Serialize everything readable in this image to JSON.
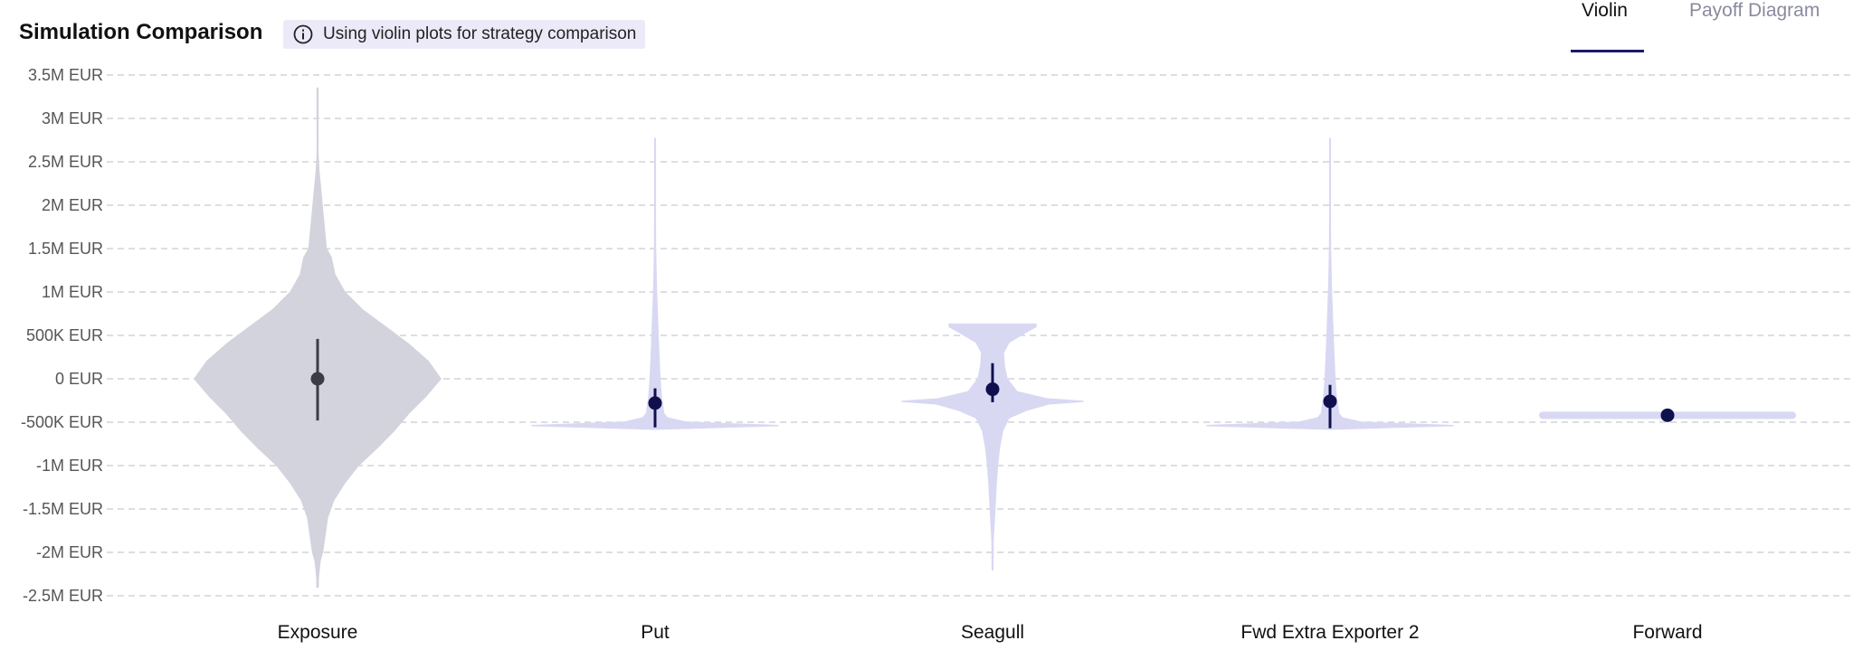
{
  "header": {
    "title": "Simulation Comparison",
    "note": "Using violin plots for strategy comparison",
    "note_icon": "info-circle-icon"
  },
  "tabs": [
    {
      "label": "Violin",
      "active": true
    },
    {
      "label": "Payoff Diagram",
      "active": false
    }
  ],
  "colors": {
    "exposure_fill": "#d3d3dd",
    "strategy_fill": "#d8d8f3",
    "exposure_marker": "#3c3c46",
    "strategy_marker": "#10104f",
    "grid": "#d4d4d8",
    "tab_accent": "#1a1a6e"
  },
  "chart_data": {
    "type": "violin",
    "unit": "EUR",
    "ylim": [
      -2500000,
      3500000
    ],
    "yticks": [
      3500000,
      3000000,
      2500000,
      2000000,
      1500000,
      1000000,
      500000,
      0,
      -500000,
      -1000000,
      -1500000,
      -2000000,
      -2500000
    ],
    "ytick_labels": [
      "3.5M EUR",
      "3M EUR",
      "2.5M EUR",
      "2M EUR",
      "1.5M EUR",
      "1M EUR",
      "500K EUR",
      "0 EUR",
      "-500K EUR",
      "-1M EUR",
      "-1.5M EUR",
      "-2M EUR",
      "-2.5M EUR"
    ],
    "grid": true,
    "categories": [
      "Exposure",
      "Put",
      "Seagull",
      "Fwd Extra Exporter 2",
      "Forward"
    ],
    "series": [
      {
        "category": "Exposure",
        "median": 0,
        "whisker": [
          -480000,
          460000
        ],
        "min": -2400000,
        "max": 3350000,
        "density": [
          [
            -2400000,
            0.005
          ],
          [
            -2300000,
            0.005
          ],
          [
            -2100000,
            0.02
          ],
          [
            -2000000,
            0.04
          ],
          [
            -1800000,
            0.06
          ],
          [
            -1600000,
            0.08
          ],
          [
            -1400000,
            0.13
          ],
          [
            -1200000,
            0.22
          ],
          [
            -1000000,
            0.33
          ],
          [
            -800000,
            0.48
          ],
          [
            -600000,
            0.62
          ],
          [
            -400000,
            0.74
          ],
          [
            -200000,
            0.88
          ],
          [
            0,
            1.0
          ],
          [
            200000,
            0.9
          ],
          [
            400000,
            0.74
          ],
          [
            600000,
            0.55
          ],
          [
            800000,
            0.36
          ],
          [
            1000000,
            0.22
          ],
          [
            1200000,
            0.14
          ],
          [
            1400000,
            0.11
          ],
          [
            1500000,
            0.07
          ],
          [
            1800000,
            0.05
          ],
          [
            2100000,
            0.03
          ],
          [
            2400000,
            0.01
          ],
          [
            2600000,
            0.002
          ],
          [
            3100000,
            0.003
          ],
          [
            3350000,
            0.003
          ]
        ]
      },
      {
        "category": "Put",
        "median": -280000,
        "whisker": [
          -560000,
          -110000
        ],
        "min": -580000,
        "max": 2770000,
        "density": [
          [
            -580000,
            0.0
          ],
          [
            -540000,
            1.0
          ],
          [
            -500000,
            0.25
          ],
          [
            -450000,
            0.1
          ],
          [
            -400000,
            0.07
          ],
          [
            -300000,
            0.06
          ],
          [
            -200000,
            0.05
          ],
          [
            0,
            0.04
          ],
          [
            200000,
            0.033
          ],
          [
            400000,
            0.027
          ],
          [
            600000,
            0.022
          ],
          [
            800000,
            0.017
          ],
          [
            1000000,
            0.012
          ],
          [
            1200000,
            0.008
          ],
          [
            1400000,
            0.005
          ],
          [
            1600000,
            0.003
          ],
          [
            1900000,
            0.002
          ],
          [
            2770000,
            0.002
          ]
        ]
      },
      {
        "category": "Seagull",
        "median": -120000,
        "whisker": [
          -270000,
          180000
        ],
        "min": -2200000,
        "max": 630000,
        "density": [
          [
            -2200000,
            0.003
          ],
          [
            -1850000,
            0.006
          ],
          [
            -1600000,
            0.02
          ],
          [
            -1400000,
            0.03
          ],
          [
            -1200000,
            0.04
          ],
          [
            -1000000,
            0.055
          ],
          [
            -800000,
            0.075
          ],
          [
            -600000,
            0.11
          ],
          [
            -450000,
            0.18
          ],
          [
            -360000,
            0.38
          ],
          [
            -290000,
            0.62
          ],
          [
            -260000,
            1.0
          ],
          [
            -230000,
            0.6
          ],
          [
            -150000,
            0.27
          ],
          [
            0,
            0.16
          ],
          [
            150000,
            0.13
          ],
          [
            300000,
            0.12
          ],
          [
            420000,
            0.18
          ],
          [
            520000,
            0.34
          ],
          [
            600000,
            0.48
          ],
          [
            630000,
            0.48
          ]
        ]
      },
      {
        "category": "Fwd Extra Exporter 2",
        "median": -260000,
        "whisker": [
          -570000,
          -70000
        ],
        "min": -580000,
        "max": 2770000,
        "density": [
          [
            -580000,
            0.0
          ],
          [
            -540000,
            1.0
          ],
          [
            -500000,
            0.25
          ],
          [
            -450000,
            0.1
          ],
          [
            -400000,
            0.07
          ],
          [
            -300000,
            0.06
          ],
          [
            -200000,
            0.05
          ],
          [
            0,
            0.04
          ],
          [
            200000,
            0.033
          ],
          [
            400000,
            0.027
          ],
          [
            600000,
            0.022
          ],
          [
            800000,
            0.017
          ],
          [
            1000000,
            0.012
          ],
          [
            1200000,
            0.008
          ],
          [
            1400000,
            0.005
          ],
          [
            1600000,
            0.003
          ],
          [
            1900000,
            0.002
          ],
          [
            2770000,
            0.002
          ]
        ]
      },
      {
        "category": "Forward",
        "median": -420000,
        "whisker": [
          -420000,
          -420000
        ],
        "min": -420000,
        "max": -420000,
        "flat": true
      }
    ]
  }
}
